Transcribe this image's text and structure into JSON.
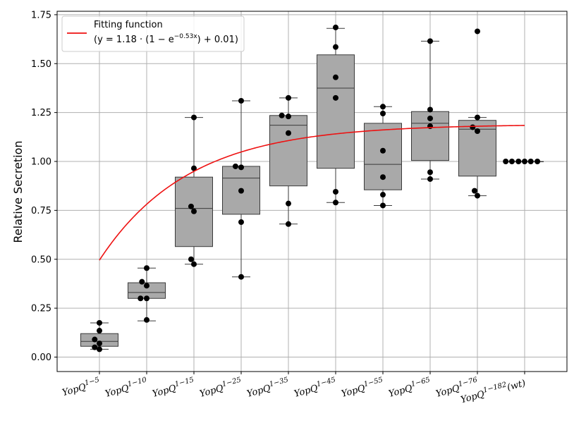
{
  "chart_data": {
    "type": "box",
    "ylabel": "Relative Secretion",
    "ylim": [
      -0.08,
      1.76
    ],
    "yticks": [
      "0.00",
      "0.25",
      "0.50",
      "0.75",
      "1.00",
      "1.25",
      "1.50",
      "1.75"
    ],
    "ytick_values": [
      0,
      0.25,
      0.5,
      0.75,
      1.0,
      1.25,
      1.5,
      1.75
    ],
    "grid": true,
    "legend_position": "top-left",
    "categories": [
      {
        "base": "YopQ",
        "sup": "1−5"
      },
      {
        "base": "YopQ",
        "sup": "1−10"
      },
      {
        "base": "YopQ",
        "sup": "1−15"
      },
      {
        "base": "YopQ",
        "sup": "1−25"
      },
      {
        "base": "YopQ",
        "sup": "1−35"
      },
      {
        "base": "YopQ",
        "sup": "1−45"
      },
      {
        "base": "YopQ",
        "sup": "1−55"
      },
      {
        "base": "YopQ",
        "sup": "1−65"
      },
      {
        "base": "YopQ",
        "sup": "1−76"
      },
      {
        "base": "YopQ",
        "sup": "1−182",
        "suffix": "(wt)"
      }
    ],
    "boxes": [
      {
        "min": 0.04,
        "q1": 0.055,
        "median": 0.08,
        "q3": 0.12,
        "max": 0.175
      },
      {
        "min": 0.185,
        "q1": 0.3,
        "median": 0.33,
        "q3": 0.38,
        "max": 0.455
      },
      {
        "min": 0.475,
        "q1": 0.565,
        "median": 0.76,
        "q3": 0.92,
        "max": 1.225
      },
      {
        "min": 0.41,
        "q1": 0.73,
        "median": 0.915,
        "q3": 0.975,
        "max": 1.31
      },
      {
        "min": 0.68,
        "q1": 0.875,
        "median": 1.185,
        "q3": 1.235,
        "max": 1.325
      },
      {
        "min": 0.79,
        "q1": 0.965,
        "median": 1.375,
        "q3": 1.545,
        "max": 1.68
      },
      {
        "min": 0.775,
        "q1": 0.855,
        "median": 0.985,
        "q3": 1.195,
        "max": 1.28
      },
      {
        "min": 0.91,
        "q1": 1.005,
        "median": 1.195,
        "q3": 1.255,
        "max": 1.615
      },
      {
        "min": 0.825,
        "q1": 0.925,
        "median": 1.165,
        "q3": 1.21,
        "max": 1.225
      },
      {
        "min": 1.0,
        "q1": 1.0,
        "median": 1.0,
        "q3": 1.0,
        "max": 1.0
      }
    ],
    "points": [
      [
        [
          0.0,
          0.175
        ],
        [
          0.0,
          0.135
        ],
        [
          -0.1,
          0.09
        ],
        [
          0.0,
          0.07
        ],
        [
          -0.1,
          0.05
        ],
        [
          0.0,
          0.04
        ]
      ],
      [
        [
          0.0,
          0.455
        ],
        [
          -0.1,
          0.385
        ],
        [
          0.0,
          0.365
        ],
        [
          -0.13,
          0.3
        ],
        [
          0.0,
          0.3
        ],
        [
          0.0,
          0.19
        ]
      ],
      [
        [
          0.0,
          1.225
        ],
        [
          0.0,
          0.965
        ],
        [
          -0.06,
          0.77
        ],
        [
          0.0,
          0.745
        ],
        [
          -0.06,
          0.5
        ],
        [
          0.0,
          0.475
        ]
      ],
      [
        [
          0.0,
          1.31
        ],
        [
          -0.12,
          0.975
        ],
        [
          0.0,
          0.97
        ],
        [
          0.0,
          0.85
        ],
        [
          0.0,
          0.69
        ],
        [
          0.0,
          0.41
        ]
      ],
      [
        [
          0.0,
          1.325
        ],
        [
          -0.14,
          1.235
        ],
        [
          0.0,
          1.23
        ],
        [
          0.0,
          1.145
        ],
        [
          0.0,
          0.785
        ],
        [
          0.0,
          0.68
        ]
      ],
      [
        [
          0.0,
          1.685
        ],
        [
          0.0,
          1.585
        ],
        [
          0.0,
          1.43
        ],
        [
          0.0,
          1.325
        ],
        [
          0.0,
          0.845
        ],
        [
          0.0,
          0.79
        ]
      ],
      [
        [
          0.0,
          1.28
        ],
        [
          0.0,
          1.245
        ],
        [
          0.0,
          1.055
        ],
        [
          0.0,
          0.92
        ],
        [
          0.0,
          0.83
        ],
        [
          0.0,
          0.775
        ]
      ],
      [
        [
          0.0,
          1.615
        ],
        [
          0.0,
          1.265
        ],
        [
          0.0,
          1.22
        ],
        [
          0.0,
          1.18
        ],
        [
          0.0,
          0.945
        ],
        [
          0.0,
          0.91
        ]
      ],
      [
        [
          0.0,
          1.665
        ],
        [
          0.0,
          1.225
        ],
        [
          -0.1,
          1.175
        ],
        [
          0.0,
          1.155
        ],
        [
          -0.06,
          0.85
        ],
        [
          0.0,
          0.825
        ]
      ],
      [
        [
          -0.4,
          1.0
        ],
        [
          -0.27,
          1.0
        ],
        [
          -0.13,
          1.0
        ],
        [
          0.0,
          1.0
        ],
        [
          0.13,
          1.0
        ],
        [
          0.27,
          1.0
        ]
      ]
    ],
    "fit": {
      "a": 1.18,
      "b": 0.53,
      "c": 0.01,
      "x_start": 1,
      "x_end": 10
    },
    "legend": {
      "title": "Fitting function",
      "formula": "(y = 1.18 · (1 − e^(−0.53x)) + 0.01)"
    },
    "colors": {
      "box_fill": "#a9a9a9",
      "box_edge": "#3a3a3a",
      "point": "#000000",
      "fit": "#ee1111",
      "grid": "#b0b0b0"
    }
  }
}
